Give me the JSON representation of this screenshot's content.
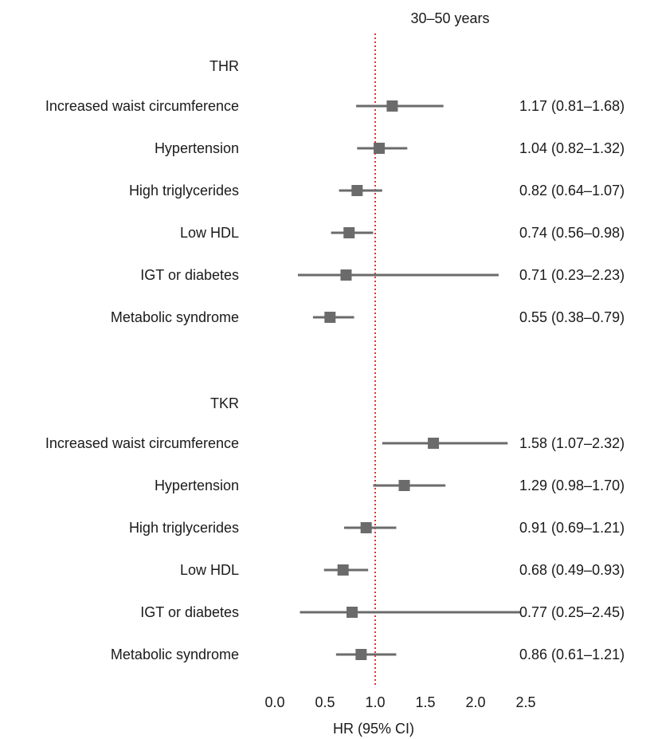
{
  "chart_data": {
    "type": "forest",
    "title": "30–50 years",
    "xlabel": "HR (95% CI)",
    "xlim": [
      0.0,
      2.5
    ],
    "xticks": [
      "0.0",
      "0.5",
      "1.0",
      "1.5",
      "2.0",
      "2.5"
    ],
    "reference_line": 1.0,
    "reference_color": "#d9372b",
    "marker_color": "#6b6b6b",
    "groups": [
      {
        "name": "THR",
        "rows": [
          {
            "label": "Increased waist circumference",
            "hr": 1.17,
            "lo": 0.81,
            "hi": 1.68,
            "text": "1.17 (0.81–1.68)"
          },
          {
            "label": "Hypertension",
            "hr": 1.04,
            "lo": 0.82,
            "hi": 1.32,
            "text": "1.04 (0.82–1.32)"
          },
          {
            "label": "High triglycerides",
            "hr": 0.82,
            "lo": 0.64,
            "hi": 1.07,
            "text": "0.82 (0.64–1.07)"
          },
          {
            "label": "Low HDL",
            "hr": 0.74,
            "lo": 0.56,
            "hi": 0.98,
            "text": "0.74 (0.56–0.98)"
          },
          {
            "label": "IGT or diabetes",
            "hr": 0.71,
            "lo": 0.23,
            "hi": 2.23,
            "text": "0.71 (0.23–2.23)"
          },
          {
            "label": "Metabolic syndrome",
            "hr": 0.55,
            "lo": 0.38,
            "hi": 0.79,
            "text": "0.55 (0.38–0.79)"
          }
        ]
      },
      {
        "name": "TKR",
        "rows": [
          {
            "label": "Increased waist circumference",
            "hr": 1.58,
            "lo": 1.07,
            "hi": 2.32,
            "text": "1.58 (1.07–2.32)"
          },
          {
            "label": "Hypertension",
            "hr": 1.29,
            "lo": 0.98,
            "hi": 1.7,
            "text": "1.29 (0.98–1.70)"
          },
          {
            "label": "High triglycerides",
            "hr": 0.91,
            "lo": 0.69,
            "hi": 1.21,
            "text": "0.91 (0.69–1.21)"
          },
          {
            "label": "Low HDL",
            "hr": 0.68,
            "lo": 0.49,
            "hi": 0.93,
            "text": "0.68 (0.49–0.93)"
          },
          {
            "label": "IGT or diabetes",
            "hr": 0.77,
            "lo": 0.25,
            "hi": 2.45,
            "text": "0.77 (0.25–2.45)"
          },
          {
            "label": "Metabolic syndrome",
            "hr": 0.86,
            "lo": 0.61,
            "hi": 1.21,
            "text": "0.86 (0.61–1.21)"
          }
        ]
      }
    ]
  }
}
